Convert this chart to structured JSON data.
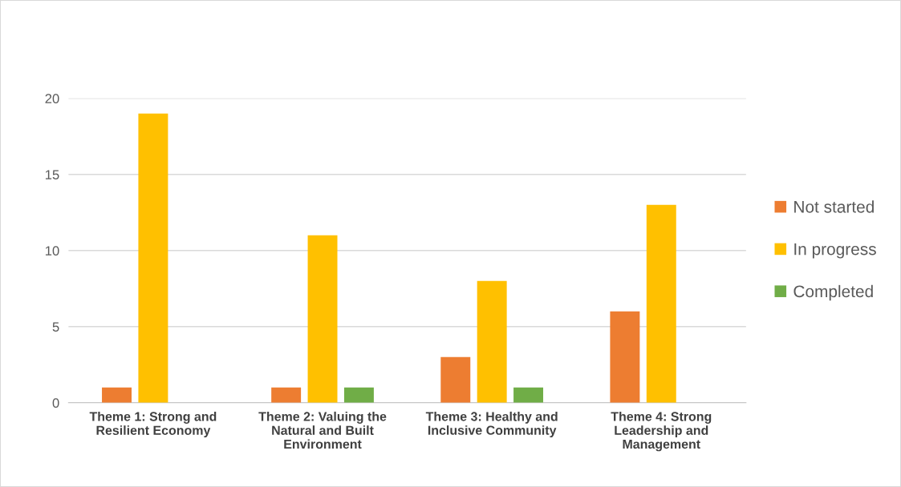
{
  "chart_data": {
    "type": "bar",
    "categories": [
      "Theme 1: Strong and\nResilient Economy",
      "Theme 2: Valuing the\nNatural and Built\nEnvironment",
      "Theme 3: Healthy and\nInclusive Community",
      "Theme 4: Strong\nLeadership and\nManagement"
    ],
    "series": [
      {
        "name": "Not started",
        "color": "#ed7d31",
        "values": [
          1,
          1,
          3,
          6
        ]
      },
      {
        "name": "In progress",
        "color": "#ffc000",
        "values": [
          19,
          11,
          8,
          13
        ]
      },
      {
        "name": "Completed",
        "color": "#70ad47",
        "values": [
          0,
          1,
          1,
          0
        ]
      }
    ],
    "ylim": [
      0,
      20
    ],
    "yticks": [
      0,
      5,
      10,
      15,
      20
    ],
    "grid": "y",
    "legend": "right"
  }
}
